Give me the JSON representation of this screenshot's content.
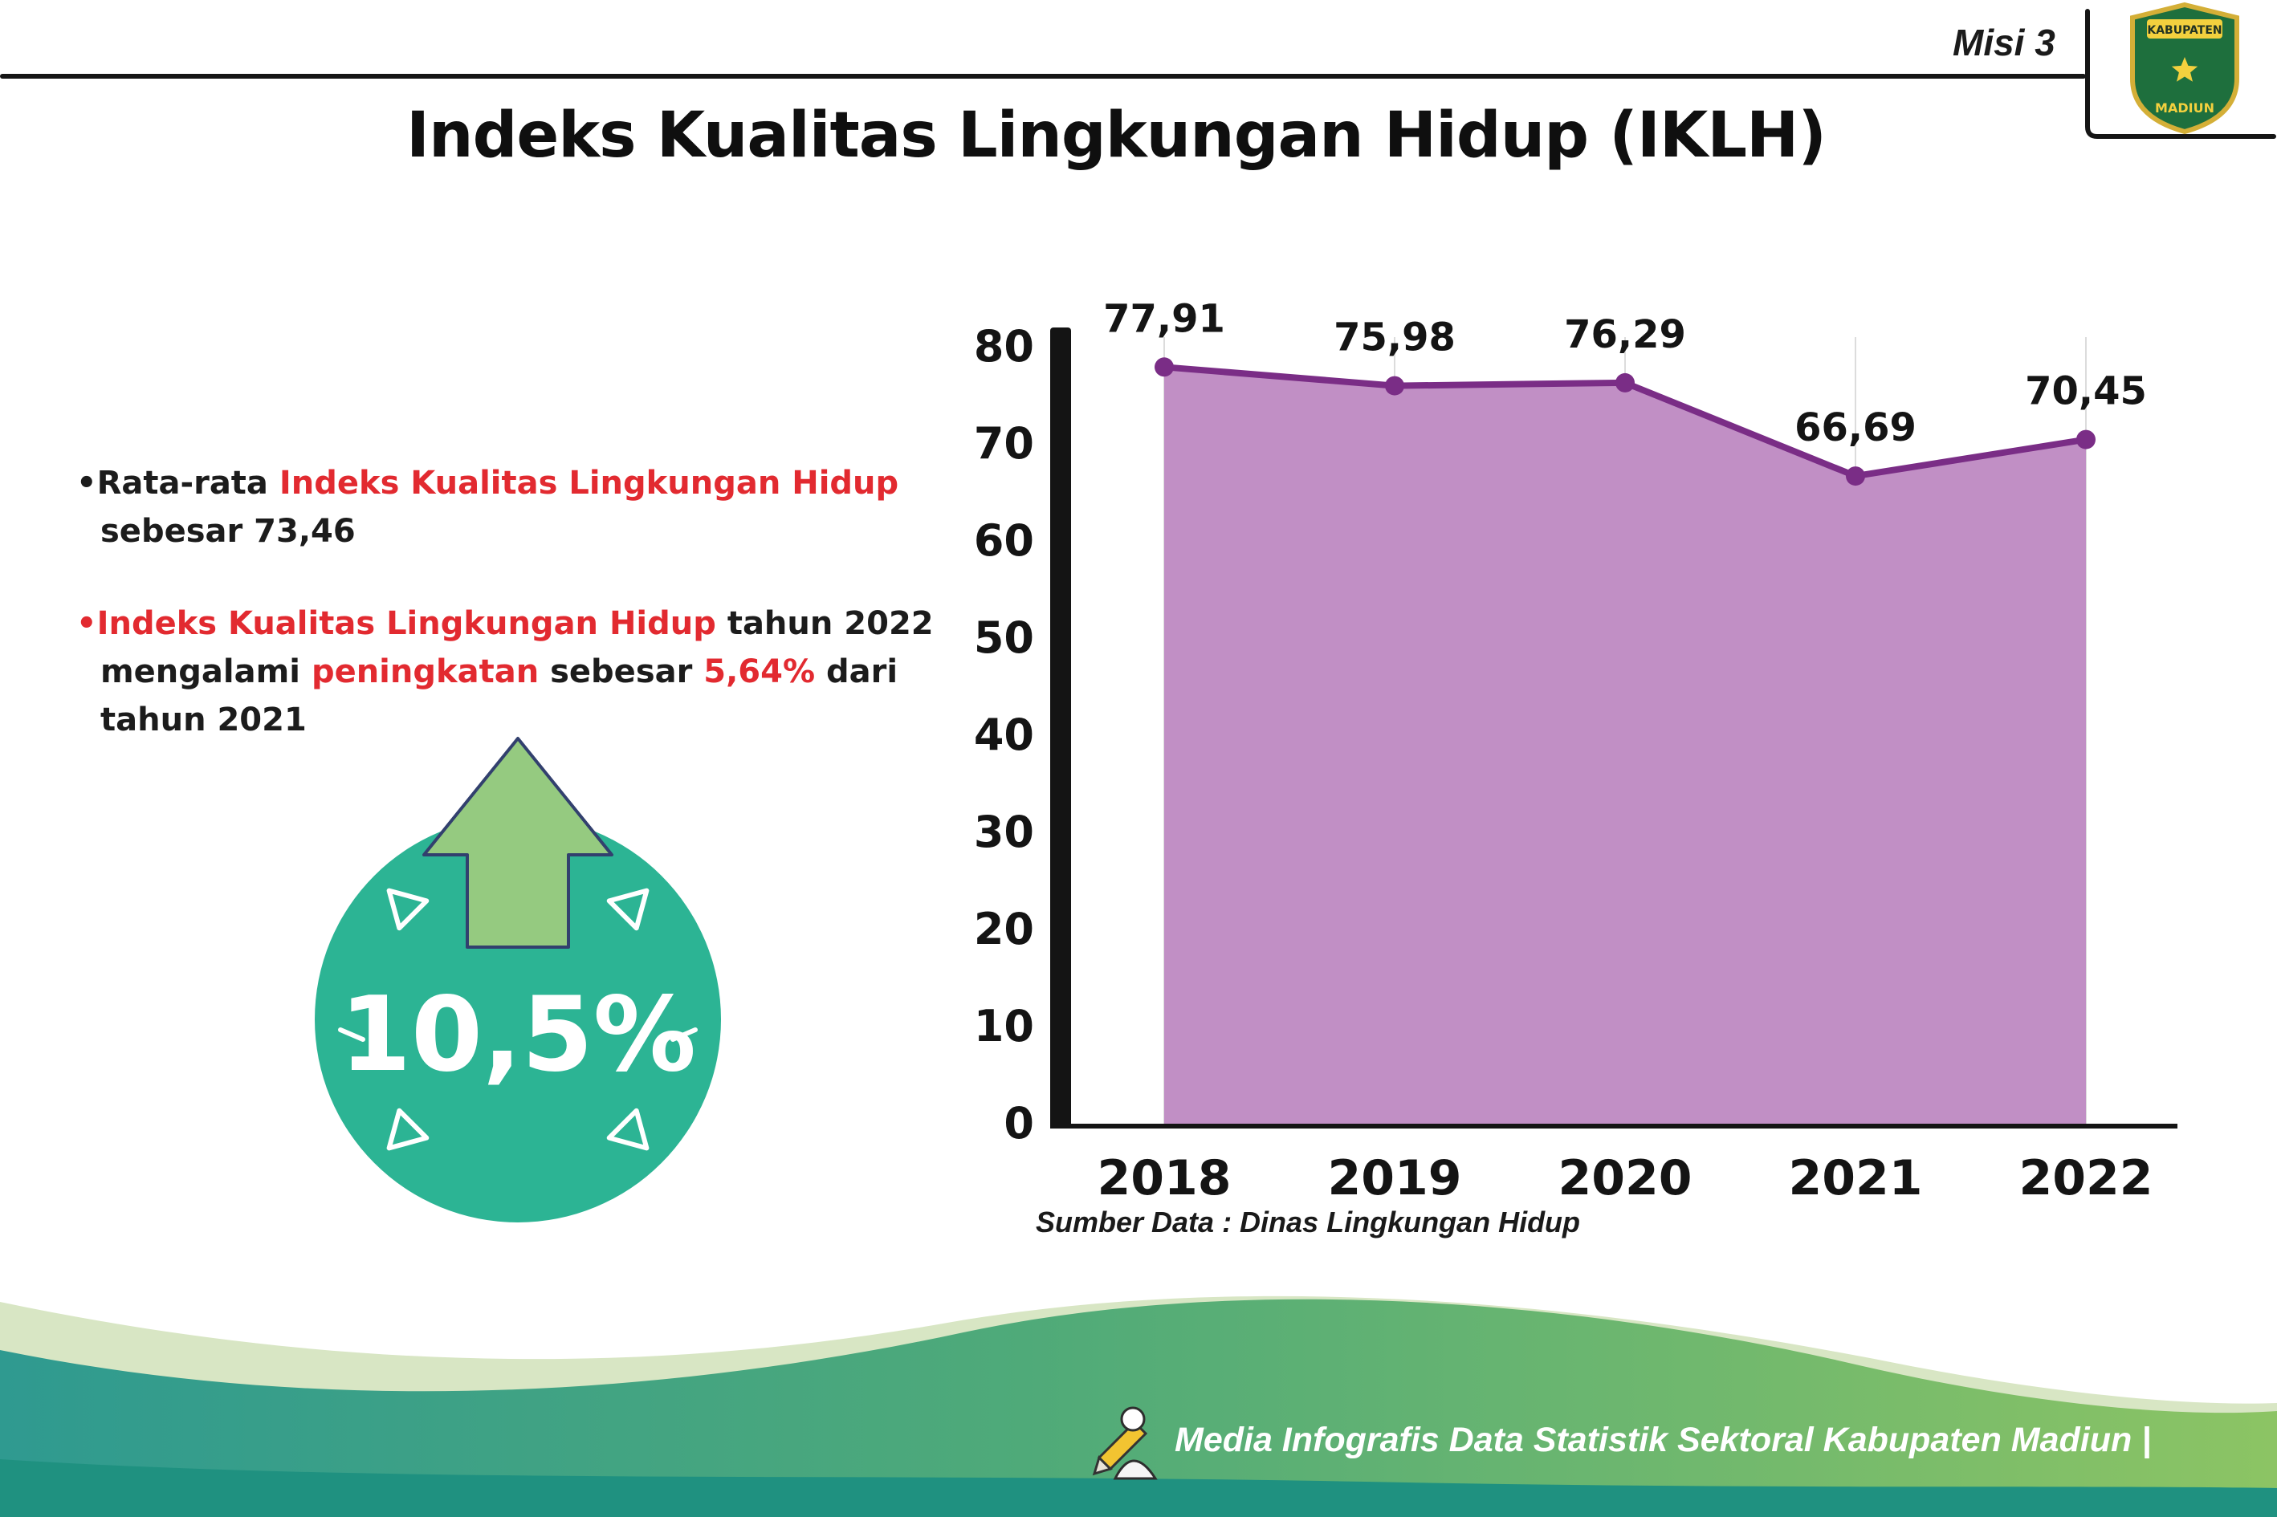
{
  "header": {
    "misi_label": "Misi 3",
    "title": "Indeks Kualitas Lingkungan Hidup (IKLH)",
    "logo": {
      "top_text": "KABUPATEN",
      "bottom_text": "MADIUN"
    }
  },
  "bullets": {
    "marker": "•",
    "b1": [
      {
        "text": "Rata-rata "
      },
      {
        "text": "Indeks Kualitas Lingkungan Hidup"
      },
      {
        "text": " sebesar 73,46"
      }
    ],
    "b2": [
      {
        "text": "Indeks Kualitas Lingkungan Hidup"
      },
      {
        "text": " tahun 2022 mengalami "
      },
      {
        "text": "peningkatan"
      },
      {
        "text": " sebesar "
      },
      {
        "text": "5,64%"
      },
      {
        "text": " dari tahun 2021"
      }
    ]
  },
  "badge": {
    "value": "10,5%"
  },
  "chart_data": {
    "type": "area",
    "title": "Indeks Kualitas Lingkungan Hidup (IKLH)",
    "categories": [
      "2018",
      "2019",
      "2020",
      "2021",
      "2022"
    ],
    "values": [
      77.91,
      75.98,
      76.29,
      66.69,
      70.45
    ],
    "value_labels": [
      "77,91",
      "75,98",
      "76,29",
      "66,69",
      "70,45"
    ],
    "ylim": [
      0,
      80
    ],
    "yticks": [
      0,
      10,
      20,
      30,
      40,
      50,
      60,
      70,
      80
    ],
    "grid": "vertical",
    "legend": "none",
    "line_color": "#7a2d86",
    "fill_color": "#c18fc5",
    "source": "Sumber Data : Dinas Lingkungan Hidup"
  },
  "footer": {
    "text": "Media Infografis Data Statistik Sektoral Kabupaten Madiun |"
  },
  "colors": {
    "accent_red": "#e22a30",
    "badge_teal": "#2cb494",
    "arrow_green": "#95ca80",
    "footer_teal": "#2f9a90",
    "footer_green": "#8cc464"
  }
}
